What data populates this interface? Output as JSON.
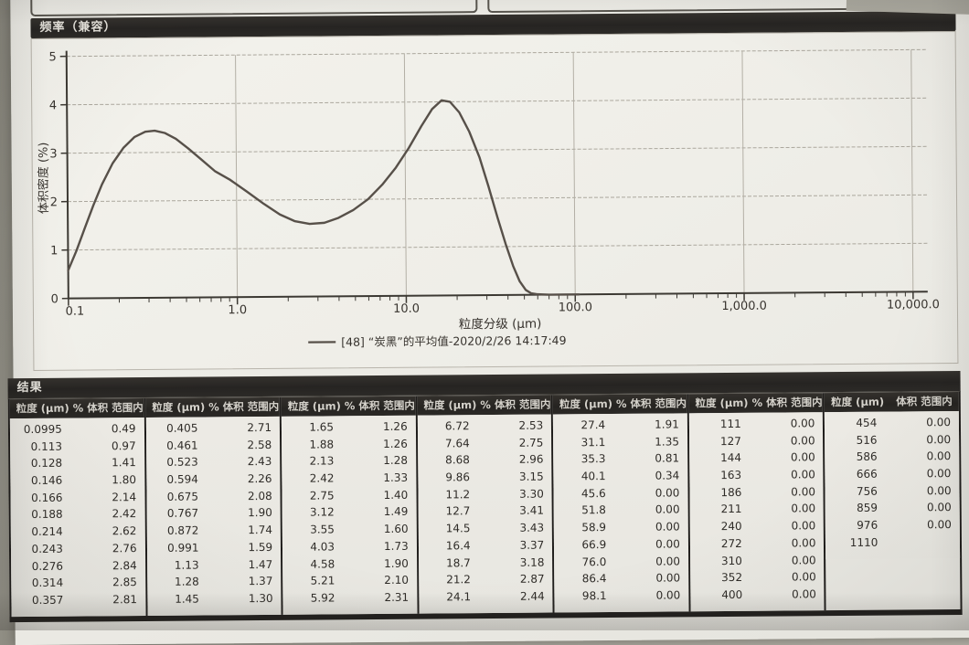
{
  "colors": {
    "photo_background": "#a8a69c",
    "paper": "#edece6",
    "section_bar": "#282623",
    "section_bar_text": "#e6e3dc",
    "table_body": "#e9e8e2",
    "table_border": "#1f1d1b",
    "curve": "#575049",
    "gridline": "#aba79d",
    "axis": "#3c3933",
    "text": "#37332e"
  },
  "chart": {
    "section_title": "频率（兼容）"
  },
  "chart_data": {
    "type": "line",
    "title": "频率（兼容）",
    "xlabel": "粒度分级 (μm)",
    "ylabel": "体积密度 (%)",
    "x_scale": "log",
    "xlim": [
      0.1,
      10000
    ],
    "ylim": [
      0,
      5
    ],
    "grid": true,
    "legend_position": "bottom",
    "x_ticks": [
      {
        "v": 0.1,
        "label": "0.1"
      },
      {
        "v": 1,
        "label": "1.0"
      },
      {
        "v": 10,
        "label": "10.0"
      },
      {
        "v": 100,
        "label": "100.0"
      },
      {
        "v": 1000,
        "label": "1,000.0"
      },
      {
        "v": 10000,
        "label": "10,000.0"
      }
    ],
    "y_ticks": [
      {
        "v": 0,
        "label": "0"
      },
      {
        "v": 1,
        "label": "1"
      },
      {
        "v": 2,
        "label": "2"
      },
      {
        "v": 3,
        "label": "3"
      },
      {
        "v": 4,
        "label": "4"
      },
      {
        "v": 5,
        "label": "5"
      }
    ],
    "series": [
      {
        "name": "[48] “炭黑”的平均值-2020/2/26 14:17:49",
        "points": [
          [
            0.1,
            0.58
          ],
          [
            0.112,
            0.98
          ],
          [
            0.126,
            1.45
          ],
          [
            0.142,
            1.92
          ],
          [
            0.16,
            2.35
          ],
          [
            0.185,
            2.78
          ],
          [
            0.215,
            3.1
          ],
          [
            0.25,
            3.32
          ],
          [
            0.29,
            3.43
          ],
          [
            0.33,
            3.45
          ],
          [
            0.38,
            3.4
          ],
          [
            0.44,
            3.28
          ],
          [
            0.52,
            3.08
          ],
          [
            0.62,
            2.85
          ],
          [
            0.75,
            2.6
          ],
          [
            0.92,
            2.42
          ],
          [
            1.15,
            2.18
          ],
          [
            1.45,
            1.92
          ],
          [
            1.8,
            1.7
          ],
          [
            2.2,
            1.56
          ],
          [
            2.7,
            1.5
          ],
          [
            3.3,
            1.52
          ],
          [
            4.0,
            1.62
          ],
          [
            4.9,
            1.78
          ],
          [
            6.0,
            2.0
          ],
          [
            7.3,
            2.3
          ],
          [
            8.8,
            2.65
          ],
          [
            10.5,
            3.05
          ],
          [
            12.5,
            3.5
          ],
          [
            14.5,
            3.85
          ],
          [
            16.5,
            4.03
          ],
          [
            18.5,
            4.0
          ],
          [
            21,
            3.78
          ],
          [
            24,
            3.38
          ],
          [
            27.5,
            2.85
          ],
          [
            31,
            2.25
          ],
          [
            35,
            1.6
          ],
          [
            39,
            1.05
          ],
          [
            43,
            0.6
          ],
          [
            47,
            0.28
          ],
          [
            51,
            0.1
          ],
          [
            55,
            0.03
          ],
          [
            60,
            0.01
          ],
          [
            70,
            0
          ],
          [
            85,
            0
          ],
          [
            105,
            0
          ]
        ]
      }
    ],
    "legend": "[48] “炭黑”的平均值-2020/2/26 14:17:49"
  },
  "results": {
    "section_title": "结果",
    "col_headers": [
      {
        "size": "粒度 (μm)",
        "pct": "% 体积 范围内"
      },
      {
        "size": "粒度 (μm)",
        "pct": "% 体积 范围内"
      },
      {
        "size": "粒度 (μm)",
        "pct": "% 体积 范围内"
      },
      {
        "size": "粒度 (μm)",
        "pct": "% 体积 范围内"
      },
      {
        "size": "粒度 (μm)",
        "pct": "% 体积 范围内"
      },
      {
        "size": "粒度 (μm)",
        "pct": "% 体积 范围内"
      },
      {
        "size": "粒度 (μm)",
        "pct": "体积 范围内"
      }
    ],
    "columns": [
      {
        "rows": [
          [
            "0.0995",
            "0.49"
          ],
          [
            "0.113",
            "0.97"
          ],
          [
            "0.128",
            "1.41"
          ],
          [
            "0.146",
            "1.80"
          ],
          [
            "0.166",
            "2.14"
          ],
          [
            "0.188",
            "2.42"
          ],
          [
            "0.214",
            "2.62"
          ],
          [
            "0.243",
            "2.76"
          ],
          [
            "0.276",
            "2.84"
          ],
          [
            "0.314",
            "2.85"
          ],
          [
            "0.357",
            "2.81"
          ]
        ]
      },
      {
        "rows": [
          [
            "0.405",
            "2.71"
          ],
          [
            "0.461",
            "2.58"
          ],
          [
            "0.523",
            "2.43"
          ],
          [
            "0.594",
            "2.26"
          ],
          [
            "0.675",
            "2.08"
          ],
          [
            "0.767",
            "1.90"
          ],
          [
            "0.872",
            "1.74"
          ],
          [
            "0.991",
            "1.59"
          ],
          [
            "1.13",
            "1.47"
          ],
          [
            "1.28",
            "1.37"
          ],
          [
            "1.45",
            "1.30"
          ]
        ]
      },
      {
        "rows": [
          [
            "1.65",
            "1.26"
          ],
          [
            "1.88",
            "1.26"
          ],
          [
            "2.13",
            "1.28"
          ],
          [
            "2.42",
            "1.33"
          ],
          [
            "2.75",
            "1.40"
          ],
          [
            "3.12",
            "1.49"
          ],
          [
            "3.55",
            "1.60"
          ],
          [
            "4.03",
            "1.73"
          ],
          [
            "4.58",
            "1.90"
          ],
          [
            "5.21",
            "2.10"
          ],
          [
            "5.92",
            "2.31"
          ]
        ]
      },
      {
        "rows": [
          [
            "6.72",
            "2.53"
          ],
          [
            "7.64",
            "2.75"
          ],
          [
            "8.68",
            "2.96"
          ],
          [
            "9.86",
            "3.15"
          ],
          [
            "11.2",
            "3.30"
          ],
          [
            "12.7",
            "3.41"
          ],
          [
            "14.5",
            "3.43"
          ],
          [
            "16.4",
            "3.37"
          ],
          [
            "18.7",
            "3.18"
          ],
          [
            "21.2",
            "2.87"
          ],
          [
            "24.1",
            "2.44"
          ]
        ]
      },
      {
        "rows": [
          [
            "27.4",
            "1.91"
          ],
          [
            "31.1",
            "1.35"
          ],
          [
            "35.3",
            "0.81"
          ],
          [
            "40.1",
            "0.34"
          ],
          [
            "45.6",
            "0.00"
          ],
          [
            "51.8",
            "0.00"
          ],
          [
            "58.9",
            "0.00"
          ],
          [
            "66.9",
            "0.00"
          ],
          [
            "76.0",
            "0.00"
          ],
          [
            "86.4",
            "0.00"
          ],
          [
            "98.1",
            "0.00"
          ]
        ]
      },
      {
        "rows": [
          [
            "111",
            "0.00"
          ],
          [
            "127",
            "0.00"
          ],
          [
            "144",
            "0.00"
          ],
          [
            "163",
            "0.00"
          ],
          [
            "186",
            "0.00"
          ],
          [
            "211",
            "0.00"
          ],
          [
            "240",
            "0.00"
          ],
          [
            "272",
            "0.00"
          ],
          [
            "310",
            "0.00"
          ],
          [
            "352",
            "0.00"
          ],
          [
            "400",
            "0.00"
          ]
        ]
      },
      {
        "rows": [
          [
            "454",
            "0.00"
          ],
          [
            "516",
            "0.00"
          ],
          [
            "586",
            "0.00"
          ],
          [
            "666",
            "0.00"
          ],
          [
            "756",
            "0.00"
          ],
          [
            "859",
            "0.00"
          ],
          [
            "976",
            "0.00"
          ],
          [
            "1110",
            ""
          ]
        ]
      }
    ]
  }
}
